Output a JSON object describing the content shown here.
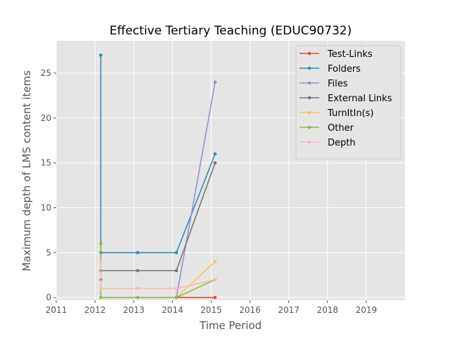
{
  "chart_data": {
    "type": "line",
    "title": "Effective Tertiary Teaching (EDUC90732)",
    "xlabel": "Time Period",
    "ylabel": "Maximum depth of LMS content items",
    "xlim": [
      2011,
      2020
    ],
    "ylim": [
      -0.3,
      28.6
    ],
    "xticks": [
      2011,
      2012,
      2013,
      2014,
      2015,
      2016,
      2017,
      2018,
      2019
    ],
    "yticks": [
      0,
      5,
      10,
      15,
      20,
      25
    ],
    "grid": true,
    "legend_position": "top-right",
    "series": [
      {
        "name": "Test-Links",
        "color": "#E24A33",
        "points": [
          [
            2014.1,
            0
          ],
          [
            2015.1,
            0
          ]
        ]
      },
      {
        "name": "Folders",
        "color": "#348ABD",
        "points": [
          [
            2012.15,
            27
          ],
          [
            2012.15,
            5
          ],
          [
            2013.1,
            5
          ],
          [
            2014.1,
            5
          ],
          [
            2015.1,
            16
          ]
        ]
      },
      {
        "name": "Files",
        "color": "#988ED5",
        "points": [
          [
            2014.1,
            0
          ],
          [
            2015.1,
            24
          ]
        ]
      },
      {
        "name": "External Links",
        "color": "#777777",
        "points": [
          [
            2012.15,
            2
          ],
          [
            2012.15,
            3
          ],
          [
            2013.1,
            3
          ],
          [
            2014.1,
            3
          ],
          [
            2015.1,
            15
          ]
        ]
      },
      {
        "name": "TurnItIn(s)",
        "color": "#FBC15E",
        "points": [
          [
            2014.1,
            0
          ],
          [
            2015.1,
            4
          ]
        ]
      },
      {
        "name": "Other",
        "color": "#8EBA42",
        "points": [
          [
            2012.15,
            6
          ],
          [
            2012.15,
            0
          ],
          [
            2013.1,
            0
          ],
          [
            2014.1,
            0
          ],
          [
            2015.1,
            2
          ]
        ]
      },
      {
        "name": "Depth",
        "color": "#FFB5B8",
        "points": [
          [
            2012.15,
            4
          ],
          [
            2012.15,
            1
          ],
          [
            2013.1,
            1
          ],
          [
            2014.1,
            1
          ],
          [
            2015.1,
            2
          ]
        ]
      }
    ]
  }
}
